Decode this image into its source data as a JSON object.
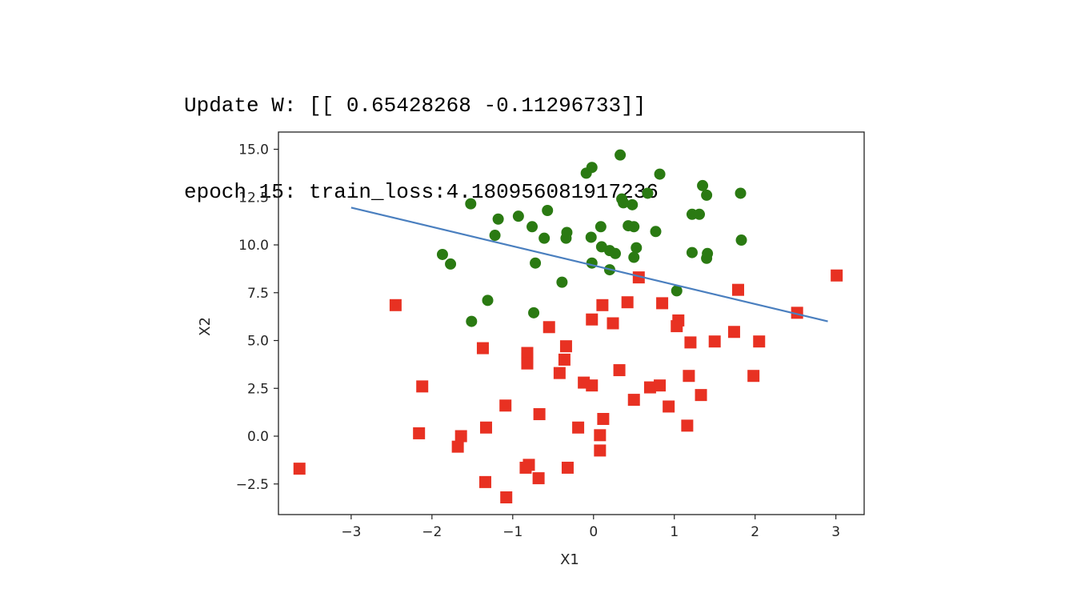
{
  "output": {
    "line1": "Update W: [[ 0.65428268 -0.11296733]]",
    "line2": "epoch 15: train_loss:4.180956081917236"
  },
  "chart_data": {
    "type": "scatter",
    "xlabel": "X1",
    "ylabel": "X2",
    "xlim": [
      -3.9,
      3.35
    ],
    "ylim": [
      -4.1,
      15.9
    ],
    "xticks": [
      -3,
      -2,
      -1,
      0,
      1,
      2,
      3
    ],
    "xtick_labels": [
      "−3",
      "−2",
      "−1",
      "0",
      "1",
      "2",
      "3"
    ],
    "yticks": [
      -2.5,
      0.0,
      2.5,
      5.0,
      7.5,
      10.0,
      12.5,
      15.0
    ],
    "ytick_labels": [
      "−2.5",
      "0.0",
      "2.5",
      "5.0",
      "7.5",
      "10.0",
      "12.5",
      "15.0"
    ],
    "grid": false,
    "series": [
      {
        "marker": "circle",
        "color": "#2a7a12",
        "points": [
          [
            0.33,
            14.7
          ],
          [
            -0.02,
            14.05
          ],
          [
            -0.09,
            13.75
          ],
          [
            0.82,
            13.7
          ],
          [
            1.35,
            13.1
          ],
          [
            1.4,
            12.6
          ],
          [
            1.82,
            12.7
          ],
          [
            0.67,
            12.7
          ],
          [
            0.35,
            12.4
          ],
          [
            0.37,
            12.2
          ],
          [
            0.48,
            12.1
          ],
          [
            -1.52,
            12.15
          ],
          [
            -0.57,
            11.8
          ],
          [
            -0.93,
            11.5
          ],
          [
            -1.18,
            11.35
          ],
          [
            1.22,
            11.6
          ],
          [
            1.31,
            11.6
          ],
          [
            0.43,
            11.0
          ],
          [
            0.5,
            10.95
          ],
          [
            0.09,
            10.95
          ],
          [
            -0.76,
            10.95
          ],
          [
            -0.33,
            10.65
          ],
          [
            0.77,
            10.7
          ],
          [
            -1.22,
            10.5
          ],
          [
            -0.61,
            10.35
          ],
          [
            -0.34,
            10.35
          ],
          [
            -0.03,
            10.4
          ],
          [
            1.83,
            10.25
          ],
          [
            0.53,
            9.85
          ],
          [
            0.2,
            9.7
          ],
          [
            0.27,
            9.55
          ],
          [
            -1.87,
            9.5
          ],
          [
            1.22,
            9.6
          ],
          [
            1.41,
            9.55
          ],
          [
            1.4,
            9.3
          ],
          [
            0.5,
            9.35
          ],
          [
            -1.77,
            9.0
          ],
          [
            -0.72,
            9.05
          ],
          [
            -0.02,
            9.05
          ],
          [
            0.2,
            8.7
          ],
          [
            -0.39,
            8.05
          ],
          [
            1.03,
            7.6
          ],
          [
            -1.31,
            7.1
          ],
          [
            -0.74,
            6.45
          ],
          [
            -1.51,
            6.0
          ],
          [
            0.1,
            9.9
          ]
        ]
      },
      {
        "marker": "square",
        "color": "#e83122",
        "points": [
          [
            3.01,
            8.4
          ],
          [
            1.79,
            7.65
          ],
          [
            0.56,
            8.3
          ],
          [
            2.52,
            6.45
          ],
          [
            -2.45,
            6.85
          ],
          [
            0.11,
            6.85
          ],
          [
            0.42,
            7.0
          ],
          [
            0.85,
            6.95
          ],
          [
            -0.02,
            6.1
          ],
          [
            0.24,
            5.9
          ],
          [
            1.05,
            6.05
          ],
          [
            1.03,
            5.75
          ],
          [
            -0.55,
            5.7
          ],
          [
            1.74,
            5.45
          ],
          [
            1.2,
            4.9
          ],
          [
            1.5,
            4.95
          ],
          [
            2.05,
            4.95
          ],
          [
            -1.37,
            4.6
          ],
          [
            -0.34,
            4.7
          ],
          [
            -0.82,
            4.35
          ],
          [
            -0.82,
            4.05
          ],
          [
            -0.82,
            3.8
          ],
          [
            -0.36,
            4.0
          ],
          [
            -0.42,
            3.3
          ],
          [
            0.32,
            3.45
          ],
          [
            1.18,
            3.15
          ],
          [
            1.98,
            3.15
          ],
          [
            -0.12,
            2.8
          ],
          [
            -0.02,
            2.65
          ],
          [
            0.7,
            2.55
          ],
          [
            0.82,
            2.65
          ],
          [
            1.33,
            2.15
          ],
          [
            -2.12,
            2.6
          ],
          [
            0.5,
            1.9
          ],
          [
            -1.09,
            1.6
          ],
          [
            0.93,
            1.55
          ],
          [
            -0.67,
            1.15
          ],
          [
            0.12,
            0.9
          ],
          [
            1.16,
            0.55
          ],
          [
            -1.33,
            0.45
          ],
          [
            -0.19,
            0.45
          ],
          [
            -2.16,
            0.15
          ],
          [
            0.08,
            0.05
          ],
          [
            -1.64,
            0.0
          ],
          [
            -1.68,
            -0.55
          ],
          [
            0.08,
            -0.75
          ],
          [
            -3.64,
            -1.7
          ],
          [
            -0.8,
            -1.5
          ],
          [
            -0.84,
            -1.65
          ],
          [
            -0.32,
            -1.65
          ],
          [
            -0.68,
            -2.2
          ],
          [
            -1.34,
            -2.4
          ],
          [
            -1.08,
            -3.2
          ]
        ]
      },
      {
        "marker": "line",
        "color": "#4a7fbf",
        "points": [
          [
            -3.0,
            11.95
          ],
          [
            2.9,
            6.0
          ]
        ]
      }
    ]
  }
}
